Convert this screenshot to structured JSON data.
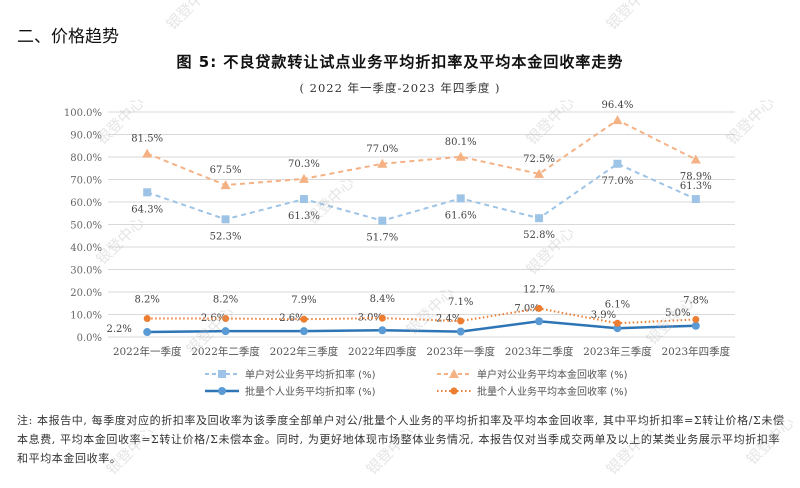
{
  "section_title": "二、价格趋势",
  "figure": {
    "title": "图 5:  不良贷款转让试点业务平均折扣率及平均本金回收率走势",
    "subtitle": "( 2022 年一季度-2023 年四季度 )"
  },
  "legend": [
    {
      "label": "单户对公业务平均折扣率 (%)",
      "color": "#9dc3e6",
      "style": "dashed",
      "marker": "square"
    },
    {
      "label": "单户对公业务平均本金回收率 (%)",
      "color": "#f4b183",
      "style": "dashed",
      "marker": "triangle"
    },
    {
      "label": "批量个人业务平均折扣率 (%)",
      "color": "#2e75b6",
      "style": "solid",
      "marker": "circle"
    },
    {
      "label": "批量个人业务平均本金回收率 (%)",
      "color": "#ed7d31",
      "style": "dotted",
      "marker": "diamond"
    }
  ],
  "note": "注: 本报告中, 每季度对应的折扣率及回收率为该季度全部单户对公/批量个人业务的平均折扣率及平均本金回收率, 其中平均折扣率=Σ转让价格/Σ未偿本息费, 平均本金回收率=Σ转让价格/Σ未偿本金。同时, 为更好地体现市场整体业务情况, 本报告仅对当季成交两单及以上的某类业务展示平均折扣率和平均本金回收率。",
  "watermark": "银登中心",
  "chart_data": {
    "type": "line",
    "title": "不良贷款转让试点业务平均折扣率及平均本金回收率走势",
    "subtitle": "2022年一季度-2023年四季度",
    "categories": [
      "2022年一季度",
      "2022年二季度",
      "2022年三季度",
      "2022年四季度",
      "2023年一季度",
      "2023年二季度",
      "2023年三季度",
      "2023年四季度"
    ],
    "yticks": [
      "0.0%",
      "10.0%",
      "20.0%",
      "30.0%",
      "40.0%",
      "50.0%",
      "60.0%",
      "70.0%",
      "80.0%",
      "90.0%",
      "100.0%"
    ],
    "ylim": [
      0,
      100
    ],
    "grid": true,
    "legend_position": "bottom",
    "series": [
      {
        "name": "单户对公业务平均折扣率 (%)",
        "values": [
          64.3,
          52.3,
          61.3,
          51.7,
          61.6,
          52.8,
          77.0,
          61.3
        ],
        "labels": [
          "64.3%",
          "52.3%",
          "61.3%",
          "51.7%",
          "61.6%",
          "52.8%",
          "77.0%",
          "61.3%"
        ]
      },
      {
        "name": "单户对公业务平均本金回收率 (%)",
        "values": [
          81.5,
          67.5,
          70.3,
          77.0,
          80.1,
          72.5,
          96.4,
          78.9
        ],
        "labels": [
          "81.5%",
          "67.5%",
          "70.3%",
          "77.0%",
          "80.1%",
          "72.5%",
          "96.4%",
          "78.9%"
        ]
      },
      {
        "name": "批量个人业务平均折扣率 (%)",
        "values": [
          2.2,
          2.6,
          2.6,
          3.0,
          2.4,
          7.0,
          3.9,
          5.0
        ],
        "labels": [
          "2.2%",
          "2.6%",
          "2.6%",
          "3.0%",
          "2.4%",
          "7.0%",
          "3.9%",
          "5.0%"
        ]
      },
      {
        "name": "批量个人业务平均本金回收率 (%)",
        "values": [
          8.2,
          8.2,
          7.9,
          8.4,
          7.1,
          12.7,
          6.1,
          7.8
        ],
        "labels": [
          "8.2%",
          "8.2%",
          "7.9%",
          "8.4%",
          "7.1%",
          "12.7%",
          "6.1%",
          "7.8%"
        ]
      }
    ]
  }
}
